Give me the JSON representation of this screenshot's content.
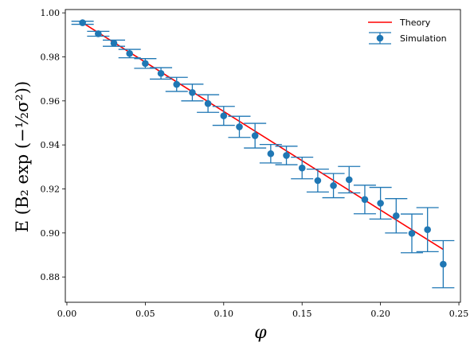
{
  "chart_data": {
    "type": "scatter",
    "xlabel": "φ",
    "ylabel": "E (B₂ exp (−½σ²))",
    "xlim": [
      -0.001,
      0.251
    ],
    "ylim": [
      0.8685,
      1.0015
    ],
    "xticks": [
      0.0,
      0.05,
      0.1,
      0.15,
      0.2,
      0.25
    ],
    "xtick_labels": [
      "0.00",
      "0.05",
      "0.10",
      "0.15",
      "0.20",
      "0.25"
    ],
    "yticks": [
      0.88,
      0.9,
      0.92,
      0.94,
      0.96,
      0.98,
      1.0
    ],
    "ytick_labels": [
      "0.88",
      "0.90",
      "0.92",
      "0.94",
      "0.96",
      "0.98",
      "1.00"
    ],
    "grid": false,
    "legend_position": "top-right",
    "series": [
      {
        "name": "Theory",
        "kind": "line",
        "color": "#ff0000",
        "x": [
          0.01,
          0.24
        ],
        "y": [
          0.9955,
          0.8925
        ]
      },
      {
        "name": "Simulation",
        "kind": "errorbar",
        "color": "#1f77b4",
        "x": [
          0.01,
          0.02,
          0.03,
          0.04,
          0.05,
          0.06,
          0.07,
          0.08,
          0.09,
          0.1,
          0.11,
          0.12,
          0.13,
          0.14,
          0.15,
          0.16,
          0.17,
          0.18,
          0.19,
          0.2,
          0.21,
          0.22,
          0.23,
          0.24
        ],
        "y": [
          0.9955,
          0.9905,
          0.9862,
          0.9815,
          0.977,
          0.9725,
          0.9675,
          0.9638,
          0.9588,
          0.9532,
          0.9482,
          0.9442,
          0.936,
          0.9352,
          0.9295,
          0.9238,
          0.9215,
          0.9242,
          0.9152,
          0.9135,
          0.9078,
          0.8998,
          0.9015,
          0.8858
        ],
        "yerr": [
          0.0007,
          0.0011,
          0.0014,
          0.0019,
          0.0022,
          0.0026,
          0.0032,
          0.0038,
          0.004,
          0.0043,
          0.0048,
          0.0056,
          0.0042,
          0.0042,
          0.0049,
          0.0052,
          0.0055,
          0.006,
          0.0065,
          0.0072,
          0.0078,
          0.0088,
          0.01,
          0.0107
        ]
      }
    ]
  }
}
